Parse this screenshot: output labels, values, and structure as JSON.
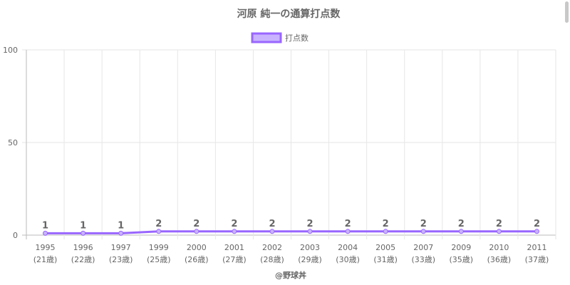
{
  "chart_data": {
    "type": "line",
    "title": "河原 純一の通算打点数",
    "categories": [
      "1995",
      "1996",
      "1997",
      "1999",
      "2000",
      "2001",
      "2002",
      "2003",
      "2004",
      "2005",
      "2007",
      "2009",
      "2010",
      "2011"
    ],
    "ages": [
      "(21歳)",
      "(22歳)",
      "(23歳)",
      "(25歳)",
      "(26歳)",
      "(27歳)",
      "(28歳)",
      "(29歳)",
      "(30歳)",
      "(31歳)",
      "(33歳)",
      "(35歳)",
      "(36歳)",
      "(37歳)"
    ],
    "series": [
      {
        "name": "打点数",
        "values": [
          1,
          1,
          1,
          2,
          2,
          2,
          2,
          2,
          2,
          2,
          2,
          2,
          2,
          2
        ]
      }
    ],
    "ylim": [
      0,
      100
    ],
    "yticks": [
      0,
      50,
      100
    ],
    "grid": true,
    "legend": "top-center",
    "colors": {
      "line": "#9966ff",
      "fill": "#c9b3ff"
    }
  },
  "credit": "@野球丼"
}
